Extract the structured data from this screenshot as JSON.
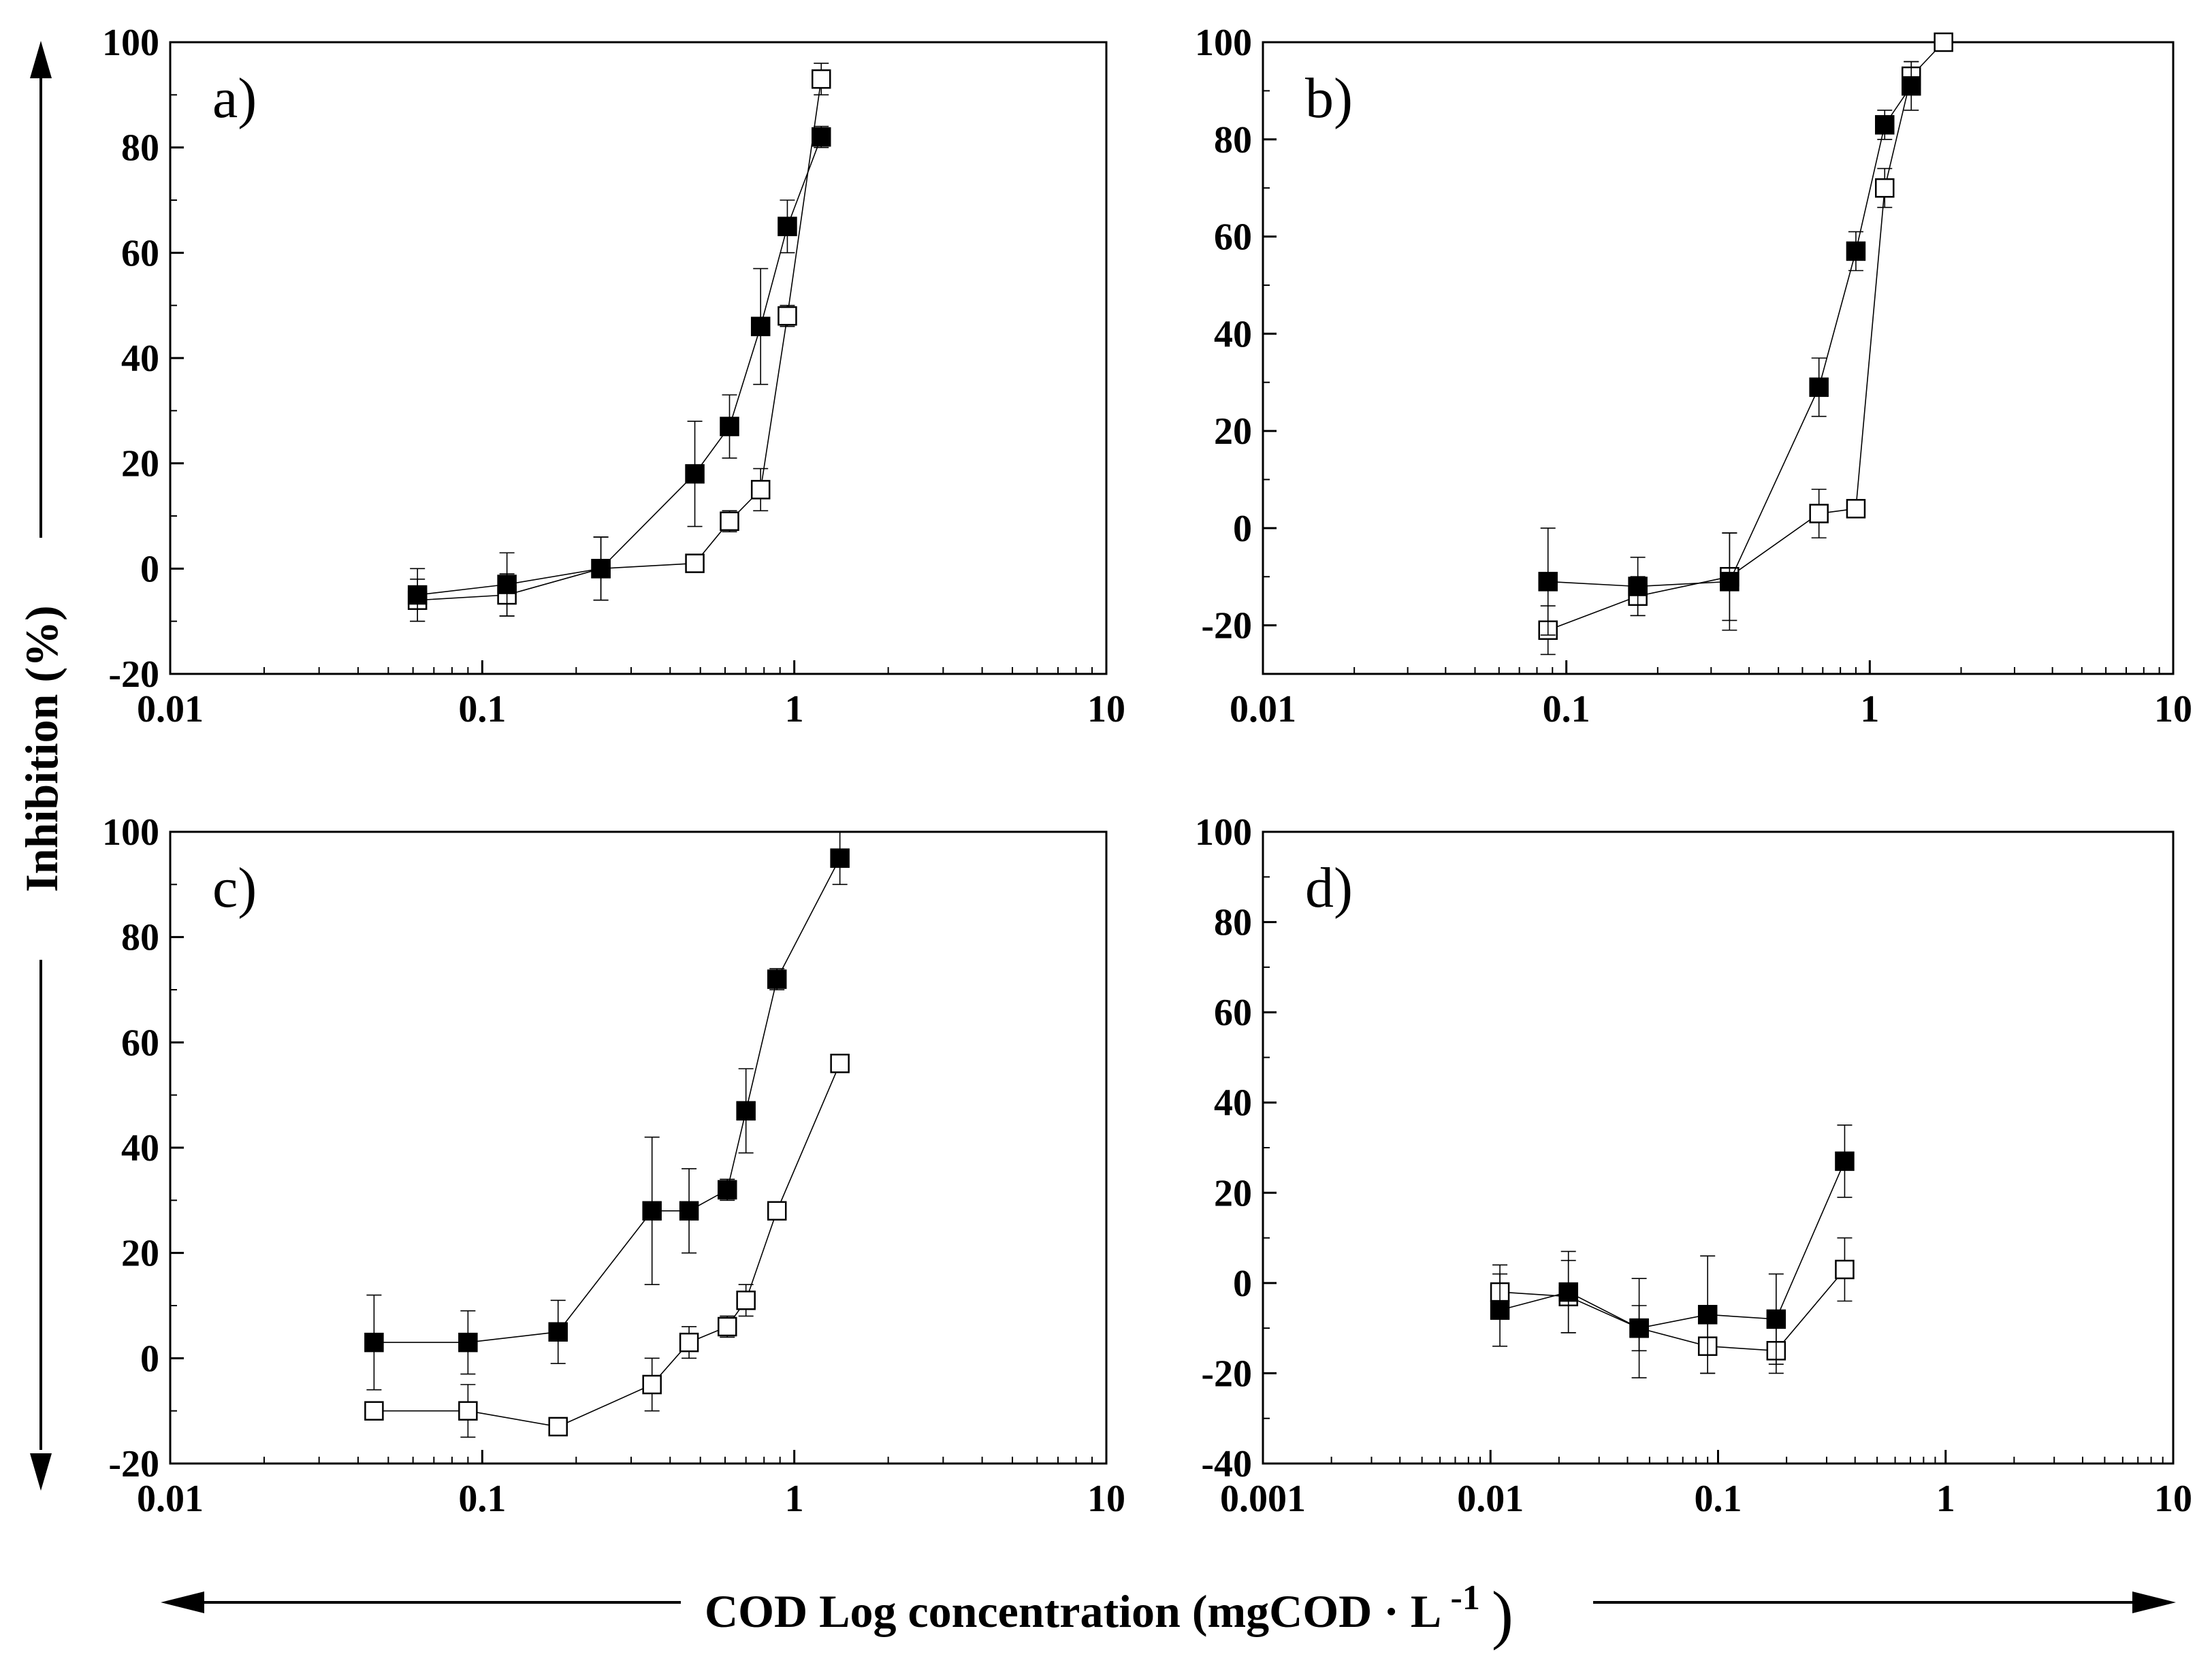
{
  "figure": {
    "y_axis_title": "Inhibition (%)",
    "x_axis_title_main": "COD Log concentration (mgCOD",
    "x_axis_title_dot": "·",
    "x_axis_title_unit": "L",
    "x_axis_title_exp": "-1",
    "x_axis_title_close": ")"
  },
  "chart_data": [
    {
      "type": "scatter",
      "panel": "a)",
      "xscale": "log",
      "xlim": [
        0.01,
        10
      ],
      "ylim": [
        -20,
        100
      ],
      "xticks": [
        0.01,
        0.1,
        1,
        10
      ],
      "xtick_labels": [
        "0.01",
        "0.1",
        "1",
        "10"
      ],
      "yticks": [
        -20,
        0,
        20,
        40,
        60,
        80,
        100
      ],
      "ytick_labels": [
        "-20",
        "0",
        "20",
        "40",
        "60",
        "80",
        "100"
      ],
      "series": [
        {
          "name": "filled",
          "marker": "filled-square",
          "x": [
            0.062,
            0.12,
            0.24,
            0.48,
            0.62,
            0.78,
            0.95,
            1.22
          ],
          "y": [
            -5,
            -3,
            0,
            18,
            27,
            46,
            65,
            82
          ],
          "err": [
            5,
            6,
            6,
            10,
            6,
            11,
            5,
            2
          ]
        },
        {
          "name": "open",
          "marker": "open-square",
          "x": [
            0.062,
            0.12,
            0.24,
            0.48,
            0.62,
            0.78,
            0.95,
            1.22
          ],
          "y": [
            -6,
            -5,
            0,
            1,
            9,
            15,
            48,
            93
          ],
          "err": [
            4,
            4,
            6,
            1,
            2,
            4,
            2,
            3
          ]
        }
      ]
    },
    {
      "type": "scatter",
      "panel": "b)",
      "xscale": "log",
      "xlim": [
        0.01,
        10
      ],
      "ylim": [
        -30,
        100
      ],
      "xticks": [
        0.01,
        0.1,
        1,
        10
      ],
      "xtick_labels": [
        "0.01",
        "0.1",
        "1",
        "10"
      ],
      "yticks": [
        -20,
        0,
        20,
        40,
        60,
        80,
        100
      ],
      "ytick_labels": [
        "-20",
        "0",
        "20",
        "40",
        "60",
        "80",
        "100"
      ],
      "series": [
        {
          "name": "filled",
          "marker": "filled-square",
          "x": [
            0.087,
            0.172,
            0.345,
            0.68,
            0.9,
            1.12,
            1.37
          ],
          "y": [
            -11,
            -12,
            -11,
            29,
            57,
            83,
            91
          ],
          "err": [
            11,
            6,
            10,
            6,
            4,
            3,
            5
          ]
        },
        {
          "name": "open",
          "marker": "open-square",
          "x": [
            0.087,
            0.172,
            0.345,
            0.68,
            0.9,
            1.12,
            1.37,
            1.75
          ],
          "y": [
            -21,
            -14,
            -10,
            3,
            4,
            70,
            93,
            100
          ],
          "err": [
            5,
            4,
            9,
            5,
            1,
            4,
            3,
            1
          ]
        }
      ]
    },
    {
      "type": "scatter",
      "panel": "c)",
      "xscale": "log",
      "xlim": [
        0.01,
        10
      ],
      "ylim": [
        -20,
        100
      ],
      "xticks": [
        0.01,
        0.1,
        1,
        10
      ],
      "xtick_labels": [
        "0.01",
        "0.1",
        "1",
        "10"
      ],
      "yticks": [
        -20,
        0,
        20,
        40,
        60,
        80,
        100
      ],
      "ytick_labels": [
        "-20",
        "0",
        "20",
        "40",
        "60",
        "80",
        "100"
      ],
      "series": [
        {
          "name": "filled",
          "marker": "filled-square",
          "x": [
            0.045,
            0.09,
            0.175,
            0.35,
            0.46,
            0.61,
            0.7,
            0.88,
            1.4
          ],
          "y": [
            3,
            3,
            5,
            28,
            28,
            32,
            47,
            72,
            95
          ],
          "err": [
            9,
            6,
            6,
            14,
            8,
            2,
            8,
            2,
            5
          ]
        },
        {
          "name": "open",
          "marker": "open-square",
          "x": [
            0.045,
            0.09,
            0.175,
            0.35,
            0.46,
            0.61,
            0.7,
            0.88,
            1.4
          ],
          "y": [
            -10,
            -10,
            -13,
            -5,
            3,
            6,
            11,
            28,
            56
          ],
          "err": [
            1,
            5,
            1,
            5,
            3,
            2,
            3,
            1,
            1
          ]
        }
      ]
    },
    {
      "type": "scatter",
      "panel": "d)",
      "xscale": "log",
      "xlim": [
        0.001,
        10
      ],
      "ylim": [
        -40,
        100
      ],
      "xticks": [
        0.001,
        0.01,
        0.1,
        1,
        10
      ],
      "xtick_labels": [
        "0.001",
        "0.01",
        "0.1",
        "1",
        "10"
      ],
      "yticks": [
        -40,
        -20,
        0,
        20,
        40,
        60,
        80,
        100
      ],
      "ytick_labels": [
        "-40",
        "-20",
        "0",
        "20",
        "40",
        "60",
        "80",
        "100"
      ],
      "series": [
        {
          "name": "filled",
          "marker": "filled-square",
          "x": [
            0.011,
            0.022,
            0.045,
            0.09,
            0.18,
            0.36
          ],
          "y": [
            -6,
            -2,
            -10,
            -7,
            -8,
            27
          ],
          "err": [
            8,
            9,
            11,
            13,
            10,
            8
          ]
        },
        {
          "name": "open",
          "marker": "open-square",
          "x": [
            0.011,
            0.022,
            0.045,
            0.09,
            0.18,
            0.36
          ],
          "y": [
            -2,
            -3,
            -10,
            -14,
            -15,
            3
          ],
          "err": [
            6,
            8,
            5,
            6,
            5,
            7
          ]
        }
      ]
    }
  ]
}
